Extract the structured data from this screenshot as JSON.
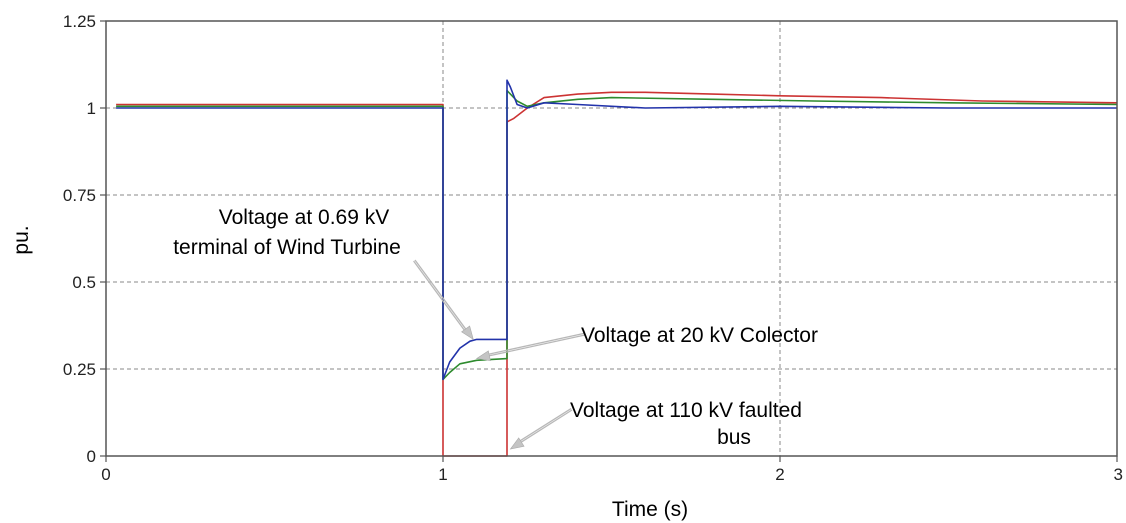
{
  "chart_data": {
    "type": "line",
    "title": "",
    "xlabel": "Time (s)",
    "ylabel": "pu.",
    "xlim": [
      0,
      3
    ],
    "ylim": [
      0,
      1.25
    ],
    "xticks": [
      0,
      1,
      2,
      3
    ],
    "yticks": [
      0,
      0.25,
      0.5,
      0.75,
      1,
      1.25
    ],
    "xtick_labels": [
      "0",
      "1",
      "2",
      "3"
    ],
    "ytick_labels": [
      "0",
      "0.25",
      "0.5",
      "0.75",
      "1",
      "1.25"
    ],
    "grid": true,
    "legend": "none",
    "series": [
      {
        "color": "#cc3333",
        "x": [
          0.03,
          1.0,
          1.0,
          1.19,
          1.19,
          1.21,
          1.25,
          1.3,
          1.4,
          1.5,
          1.6,
          1.8,
          2.0,
          2.3,
          2.6,
          3.0
        ],
        "y": [
          1.01,
          1.01,
          0.0,
          0.0,
          0.96,
          0.97,
          1.0,
          1.03,
          1.04,
          1.045,
          1.045,
          1.04,
          1.035,
          1.03,
          1.02,
          1.015
        ]
      },
      {
        "color": "#2e8b2e",
        "x": [
          0.03,
          1.0,
          1.0,
          1.02,
          1.05,
          1.1,
          1.19,
          1.19,
          1.2,
          1.22,
          1.25,
          1.3,
          1.4,
          1.5,
          1.8,
          2.1,
          2.5,
          3.0
        ],
        "y": [
          1.005,
          1.005,
          0.22,
          0.24,
          0.265,
          0.275,
          0.28,
          1.05,
          1.04,
          1.02,
          1.005,
          1.015,
          1.025,
          1.03,
          1.025,
          1.02,
          1.015,
          1.01
        ]
      },
      {
        "color": "#2233aa",
        "x": [
          0.03,
          1.0,
          1.0,
          1.02,
          1.05,
          1.08,
          1.1,
          1.19,
          1.19,
          1.2,
          1.22,
          1.25,
          1.3,
          1.4,
          1.6,
          2.0,
          2.5,
          3.0
        ],
        "y": [
          1.0,
          1.0,
          0.22,
          0.27,
          0.31,
          0.33,
          0.335,
          0.335,
          1.08,
          1.06,
          1.01,
          1.0,
          1.015,
          1.01,
          1.0,
          1.005,
          1.0,
          1.0
        ]
      }
    ],
    "annotations": [
      {
        "lines": [
          "Voltage at 0.69 kV",
          "terminal of Wind Turbine"
        ],
        "points_to": [
          1.09,
          0.335
        ]
      },
      {
        "lines": [
          "Voltage at 20 kV Colector"
        ],
        "points_to": [
          1.1,
          0.28
        ]
      },
      {
        "lines": [
          "Voltage at 110 kV faulted",
          "bus"
        ],
        "points_to": [
          1.2,
          0.02
        ]
      }
    ]
  }
}
